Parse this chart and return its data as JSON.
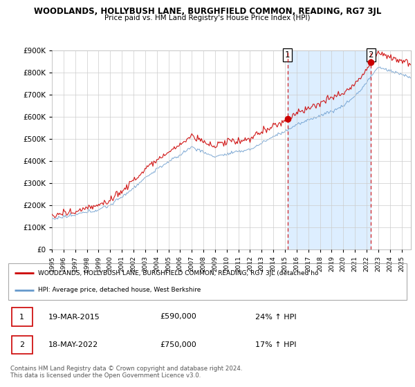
{
  "title": "WOODLANDS, HOLLYBUSH LANE, BURGHFIELD COMMON, READING, RG7 3JL",
  "subtitle": "Price paid vs. HM Land Registry's House Price Index (HPI)",
  "ylim": [
    0,
    900000
  ],
  "yticks": [
    0,
    100000,
    200000,
    300000,
    400000,
    500000,
    600000,
    700000,
    800000,
    900000
  ],
  "legend_line1": "WOODLANDS, HOLLYBUSH LANE, BURGHFIELD COMMON, READING, RG7 3JL (detached ho",
  "legend_line2": "HPI: Average price, detached house, West Berkshire",
  "sale1_label": "1",
  "sale1_date": "19-MAR-2015",
  "sale1_price": "£590,000",
  "sale1_pct": "24% ↑ HPI",
  "sale2_label": "2",
  "sale2_date": "18-MAY-2022",
  "sale2_price": "£750,000",
  "sale2_pct": "17% ↑ HPI",
  "footnote1": "Contains HM Land Registry data © Crown copyright and database right 2024.",
  "footnote2": "This data is licensed under the Open Government Licence v3.0.",
  "sale1_year": 2015.21,
  "sale2_year": 2022.38,
  "sale1_value": 590000,
  "sale2_value": 750000,
  "red_color": "#cc0000",
  "blue_color": "#6699cc",
  "shade_color": "#ddeeff",
  "background_color": "#ffffff",
  "grid_color": "#cccccc"
}
